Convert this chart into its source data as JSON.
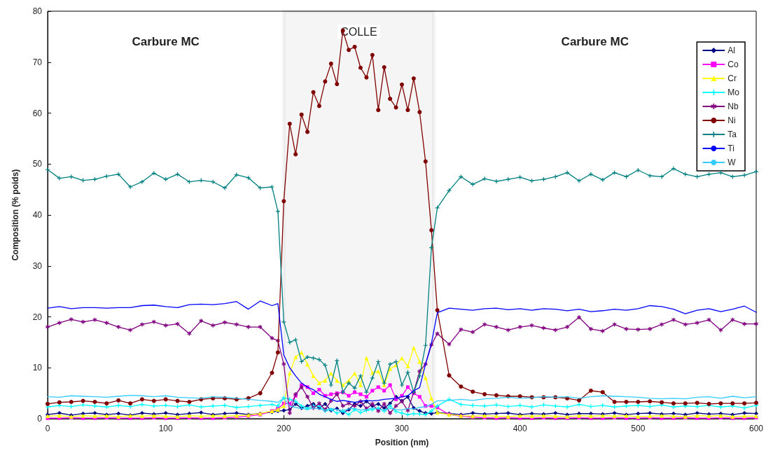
{
  "chart_data": {
    "type": "line",
    "xlabel": "Position (nm)",
    "ylabel": "Composition (% poids)",
    "x": [
      0,
      10,
      20,
      30,
      40,
      50,
      60,
      70,
      80,
      90,
      100,
      110,
      120,
      130,
      140,
      150,
      160,
      170,
      180,
      190,
      195,
      200,
      205,
      210,
      215,
      220,
      225,
      230,
      235,
      240,
      245,
      250,
      255,
      260,
      265,
      270,
      275,
      280,
      285,
      290,
      295,
      300,
      305,
      310,
      315,
      320,
      325,
      330,
      340,
      350,
      360,
      370,
      380,
      390,
      400,
      410,
      420,
      430,
      440,
      450,
      460,
      470,
      480,
      490,
      500,
      510,
      520,
      530,
      540,
      550,
      560,
      570,
      580,
      590,
      600
    ],
    "xlim": [
      0,
      600
    ],
    "xticks": [
      0,
      100,
      200,
      300,
      400,
      500,
      600
    ],
    "ylim": [
      0,
      80
    ],
    "yticks": [
      0,
      10,
      20,
      30,
      40,
      50,
      60,
      70,
      80
    ],
    "grid": false,
    "legend": "top right",
    "line_style": "solid",
    "series": [
      {
        "name": "Al",
        "color": "#000080",
        "marker": "diamond",
        "values": [
          0.8,
          1.1,
          0.7,
          1.0,
          1.1,
          0.8,
          1.0,
          0.7,
          1.1,
          0.9,
          1.1,
          0.8,
          1.0,
          1.2,
          0.8,
          1.0,
          1.1,
          0.8,
          1.0,
          1.3,
          1.5,
          1.6,
          1.8,
          2.9,
          2.1,
          2.5,
          2.9,
          2.1,
          2.9,
          1.6,
          2.0,
          1.1,
          1.8,
          2.9,
          2.5,
          3.4,
          2.5,
          2.9,
          2.1,
          3.0,
          4.3,
          3.5,
          4.3,
          2.1,
          1.5,
          1.1,
          1.0,
          1.2,
          1.0,
          0.8,
          1.1,
          0.9,
          1.0,
          1.1,
          0.8,
          1.0,
          0.9,
          1.1,
          0.8,
          1.0,
          1.0,
          0.9,
          1.1,
          0.8,
          1.0,
          1.1,
          0.9,
          1.0,
          0.8,
          1.1,
          0.9,
          1.0,
          0.8,
          1.1,
          1.0
        ]
      },
      {
        "name": "Co",
        "color": "#ff00ff",
        "marker": "square",
        "values": [
          0.1,
          0.1,
          0.2,
          0.1,
          0.1,
          0.2,
          0.1,
          0.1,
          0.1,
          0.2,
          0.1,
          0.1,
          0.2,
          0.1,
          0.1,
          0.2,
          0.3,
          0.5,
          0.8,
          1.5,
          2.0,
          3.0,
          2.9,
          4.5,
          6.6,
          6.2,
          5.0,
          5.7,
          4.5,
          4.8,
          5.0,
          5.2,
          4.5,
          5.2,
          4.8,
          4.3,
          5.5,
          6.2,
          5.5,
          6.6,
          3.8,
          4.5,
          6.2,
          5.0,
          4.3,
          2.5,
          2.5,
          2.2,
          0.8,
          0.5,
          0.3,
          0.2,
          0.1,
          0.2,
          0.1,
          0.1,
          0.2,
          0.1,
          0.1,
          0.2,
          0.1,
          0.1,
          0.2,
          0.1,
          0.1,
          0.2,
          0.1,
          0.1,
          0.2,
          0.1,
          0.1,
          0.2,
          0.1,
          0.1,
          0.2
        ]
      },
      {
        "name": "Cr",
        "color": "#ffff00",
        "marker": "triangle",
        "values": [
          0.5,
          0.6,
          0.4,
          0.6,
          0.5,
          0.6,
          0.4,
          0.6,
          0.5,
          0.6,
          0.5,
          0.4,
          0.6,
          0.5,
          0.6,
          0.5,
          0.6,
          0.7,
          1.0,
          1.5,
          1.8,
          2.5,
          8.9,
          12.1,
          13.0,
          10.7,
          8.4,
          7.0,
          7.5,
          8.9,
          7.5,
          6.6,
          7.5,
          8.9,
          6.6,
          11.9,
          9.0,
          9.3,
          6.6,
          9.8,
          10.5,
          11.9,
          10.3,
          13.9,
          11.2,
          8.0,
          4.0,
          1.2,
          0.8,
          0.6,
          0.5,
          0.6,
          0.5,
          0.4,
          0.6,
          0.5,
          0.6,
          0.5,
          0.4,
          0.6,
          0.5,
          0.6,
          0.5,
          0.6,
          0.4,
          0.5,
          0.6,
          0.5,
          0.4,
          0.6,
          0.5,
          0.6,
          0.4,
          0.5,
          0.5
        ]
      },
      {
        "name": "Mo",
        "color": "#00ffff",
        "marker": "cross",
        "values": [
          2.3,
          2.6,
          2.4,
          2.7,
          2.5,
          2.3,
          2.6,
          2.4,
          2.8,
          2.5,
          2.6,
          2.4,
          2.7,
          2.3,
          2.5,
          2.6,
          2.2,
          2.4,
          2.6,
          2.8,
          2.5,
          4.1,
          3.8,
          3.4,
          2.5,
          2.0,
          2.5,
          2.5,
          1.5,
          1.8,
          1.1,
          1.5,
          0.8,
          1.8,
          1.2,
          1.6,
          1.8,
          2.1,
          1.5,
          2.5,
          1.4,
          1.1,
          0.8,
          1.0,
          0.9,
          0.8,
          1.5,
          2.5,
          3.8,
          2.8,
          2.6,
          2.5,
          2.7,
          2.4,
          2.6,
          2.3,
          2.7,
          2.5,
          2.3,
          2.8,
          2.4,
          2.6,
          2.3,
          2.5,
          2.6,
          2.4,
          2.7,
          2.3,
          2.5,
          2.4,
          2.6,
          2.3,
          2.5,
          2.1,
          2.6
        ]
      },
      {
        "name": "Nb",
        "color": "#800080",
        "marker": "star",
        "values": [
          18.0,
          18.8,
          19.5,
          19.0,
          19.4,
          18.8,
          18.0,
          17.4,
          18.5,
          19.0,
          18.3,
          18.6,
          16.7,
          19.2,
          18.3,
          18.9,
          18.5,
          18.0,
          18.0,
          15.8,
          15.3,
          10.7,
          1.1,
          4.8,
          6.2,
          4.3,
          2.1,
          3.0,
          1.8,
          3.5,
          4.8,
          2.5,
          3.0,
          2.5,
          3.4,
          2.0,
          2.9,
          1.5,
          2.9,
          1.1,
          2.5,
          3.4,
          1.6,
          5.2,
          9.3,
          10.7,
          14.5,
          16.7,
          14.6,
          17.5,
          17.0,
          18.5,
          18.0,
          17.4,
          18.0,
          18.3,
          17.8,
          17.4,
          18.0,
          19.9,
          17.6,
          17.2,
          18.5,
          17.6,
          17.5,
          17.6,
          18.5,
          19.4,
          18.5,
          18.8,
          19.4,
          17.4,
          19.4,
          18.6,
          18.6
        ]
      },
      {
        "name": "Ni",
        "color": "#800000",
        "marker": "circle",
        "values": [
          2.9,
          3.2,
          3.3,
          3.5,
          3.3,
          3.0,
          3.6,
          3.0,
          3.8,
          3.5,
          3.8,
          3.5,
          3.3,
          3.8,
          4.0,
          4.0,
          3.8,
          4.0,
          5.0,
          9.0,
          13.0,
          42.7,
          57.9,
          51.9,
          59.7,
          56.3,
          64.1,
          61.4,
          66.2,
          69.7,
          65.7,
          76.2,
          72.4,
          73.0,
          68.9,
          67.0,
          71.4,
          60.6,
          69.0,
          62.8,
          61.1,
          65.6,
          60.6,
          66.8,
          60.2,
          50.5,
          37.0,
          21.3,
          8.5,
          6.3,
          5.3,
          4.8,
          4.6,
          4.4,
          4.4,
          4.2,
          4.2,
          4.2,
          4.0,
          3.6,
          5.5,
          5.2,
          3.3,
          3.3,
          3.3,
          3.4,
          3.2,
          3.0,
          3.0,
          3.1,
          2.9,
          3.0,
          3.0,
          3.0,
          3.1
        ]
      },
      {
        "name": "Ta",
        "color": "#008080",
        "marker": "cross",
        "values": [
          48.9,
          47.2,
          47.5,
          46.8,
          47.0,
          47.6,
          48.0,
          45.5,
          46.5,
          48.2,
          47.0,
          48.0,
          46.5,
          46.8,
          46.5,
          45.3,
          47.9,
          47.3,
          45.3,
          45.5,
          40.7,
          19.0,
          15.0,
          15.5,
          11.2,
          12.1,
          11.9,
          11.6,
          10.5,
          6.6,
          11.4,
          5.2,
          7.0,
          6.0,
          8.4,
          5.2,
          8.0,
          11.2,
          7.0,
          10.7,
          11.2,
          6.6,
          9.1,
          5.2,
          8.4,
          14.4,
          33.6,
          41.4,
          44.8,
          47.5,
          46.0,
          47.1,
          46.6,
          47.0,
          47.4,
          46.7,
          47.0,
          47.5,
          48.3,
          46.7,
          48.0,
          46.9,
          48.3,
          47.5,
          48.8,
          47.7,
          47.5,
          49.1,
          48.0,
          47.5,
          48.0,
          48.3,
          47.5,
          47.8,
          48.5
        ]
      },
      {
        "name": "Ti",
        "color": "#0000ff",
        "marker": "none",
        "values": [
          21.7,
          22.0,
          21.6,
          21.8,
          21.8,
          21.7,
          21.8,
          21.8,
          22.2,
          22.3,
          22.0,
          21.8,
          22.4,
          22.5,
          22.4,
          22.6,
          23.0,
          21.5,
          23.1,
          22.2,
          22.6,
          12.5,
          10.0,
          8.4,
          7.0,
          6.2,
          5.7,
          4.8,
          4.3,
          3.8,
          3.4,
          3.6,
          3.4,
          3.2,
          3.4,
          3.6,
          3.5,
          3.6,
          3.8,
          3.9,
          4.0,
          4.3,
          4.5,
          5.5,
          6.1,
          10.7,
          14.8,
          20.8,
          21.7,
          21.5,
          21.3,
          21.6,
          21.7,
          21.4,
          21.6,
          21.3,
          21.6,
          21.5,
          21.2,
          21.5,
          21.0,
          21.2,
          21.5,
          21.3,
          21.6,
          22.2,
          22.0,
          21.5,
          20.6,
          21.3,
          21.6,
          21.0,
          21.5,
          22.1,
          20.9
        ]
      },
      {
        "name": "W",
        "color": "#33ccff",
        "marker": "none",
        "values": [
          4.3,
          4.2,
          4.5,
          4.4,
          4.3,
          4.2,
          4.4,
          4.6,
          4.5,
          4.3,
          4.5,
          4.2,
          4.1,
          4.0,
          4.3,
          4.2,
          4.0,
          3.8,
          3.6,
          3.4,
          3.2,
          4.0,
          2.5,
          2.2,
          2.0,
          1.8,
          2.1,
          1.9,
          1.7,
          2.0,
          1.8,
          1.6,
          1.9,
          2.0,
          1.7,
          1.8,
          2.1,
          1.9,
          1.6,
          2.0,
          1.8,
          1.7,
          2.0,
          1.9,
          2.2,
          2.4,
          2.8,
          3.5,
          3.6,
          3.8,
          3.6,
          3.9,
          4.0,
          4.2,
          4.0,
          4.1,
          4.3,
          4.2,
          4.3,
          4.0,
          4.3,
          4.5,
          4.4,
          4.3,
          4.2,
          4.0,
          3.9,
          4.0,
          3.9,
          4.2,
          4.3,
          4.0,
          4.4,
          4.1,
          4.3
        ]
      }
    ],
    "bands": [
      {
        "axis": "x",
        "from": 200,
        "to": 327,
        "label": "COLLE",
        "color": "#000000"
      }
    ],
    "annotations": [
      "Carbure MC",
      "Carbure MC"
    ]
  }
}
